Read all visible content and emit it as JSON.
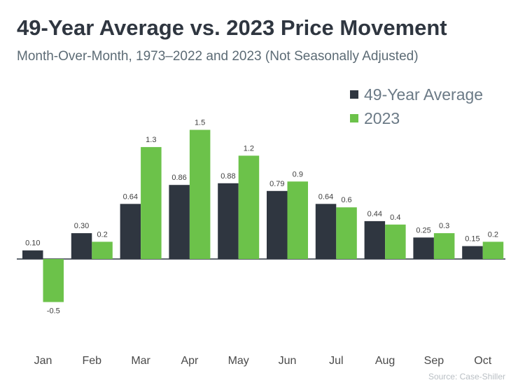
{
  "colors": {
    "series_avg": "#2f3640",
    "series_2023": "#6cc24a",
    "zero_line": "#2f3640",
    "label_text": "#404040",
    "axis_text": "#4a4a4a"
  },
  "chart_data": {
    "type": "bar",
    "title": "49-Year Average vs. 2023 Price Movement",
    "subtitle": "Month-Over-Month, 1973–2022 and 2023 (Not Seasonally Adjusted)",
    "categories": [
      "Jan",
      "Feb",
      "Mar",
      "Apr",
      "May",
      "Jun",
      "Jul",
      "Aug",
      "Sep",
      "Oct"
    ],
    "series": [
      {
        "name": "49-Year Average",
        "values": [
          0.1,
          0.3,
          0.64,
          0.86,
          0.88,
          0.79,
          0.64,
          0.44,
          0.25,
          0.15
        ],
        "labels": [
          "0.10",
          "0.30",
          "0.64",
          "0.86",
          "0.88",
          "0.79",
          "0.64",
          "0.44",
          "0.25",
          "0.15"
        ]
      },
      {
        "name": "2023",
        "values": [
          -0.5,
          0.2,
          1.3,
          1.5,
          1.2,
          0.9,
          0.6,
          0.4,
          0.3,
          0.2
        ],
        "labels": [
          "-0.5",
          "0.2",
          "1.3",
          "1.5",
          "1.2",
          "0.9",
          "0.6",
          "0.4",
          "0.3",
          "0.2"
        ]
      }
    ],
    "xlabel": "",
    "ylabel": "",
    "ylim": [
      -0.7,
      1.7
    ],
    "grid": false,
    "legend_position": "top-right",
    "source": "Source: Case-Shiller"
  }
}
